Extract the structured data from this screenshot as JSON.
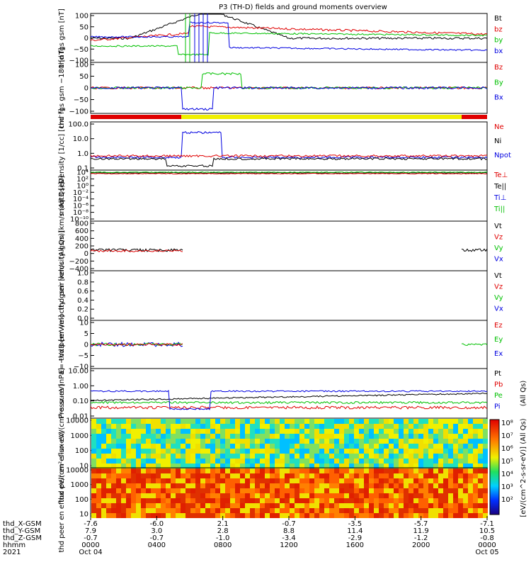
{
  "chart_data": {
    "type": "line",
    "title": "P3 (TH-D) fields and ground moments overview",
    "panels": [
      {
        "ylabel": "thd fgs gsm [nT]",
        "yticks": [
          "100",
          "50",
          "0",
          "−50",
          "−100"
        ],
        "legend": [
          {
            "name": "Bt",
            "color": "#000000"
          },
          {
            "name": "bz",
            "color": "#e00000"
          },
          {
            "name": "by",
            "color": "#00c000"
          },
          {
            "name": "bx",
            "color": "#0000e0"
          }
        ]
      },
      {
        "ylabel": "thd fgs gsm −180 [nT]",
        "yticks": [
          "100",
          "50",
          "0",
          "−50",
          "−100"
        ],
        "legend": [
          {
            "name": "Bz",
            "color": "#e00000"
          },
          {
            "name": "By",
            "color": "#00c000"
          },
          {
            "name": "Bx",
            "color": "#0000e0"
          }
        ]
      },
      {
        "ylabel": "Density [1/cc] [cm⁻³]",
        "yticks": [
          "100.0",
          "10.0",
          "1.0",
          "0.1"
        ],
        "legend": [
          {
            "name": "Ne",
            "color": "#e00000"
          },
          {
            "name": "Ni",
            "color": "#000000"
          },
          {
            "name": "Npot",
            "color": "#0000e0"
          }
        ]
      },
      {
        "ylabel": "moqt3 [eV]",
        "yticks": [
          "10⁴",
          "10²",
          "10⁰",
          "10⁻²",
          "10⁻⁴",
          "10⁻⁶",
          "10⁻⁸",
          "10⁻¹⁰"
        ],
        "legend": [
          {
            "name": "Te⊥",
            "color": "#e00000"
          },
          {
            "name": "Te||",
            "color": "#000000"
          },
          {
            "name": "Ti⊥",
            "color": "#0000e0"
          },
          {
            "name": "Ti||",
            "color": "#00c000"
          }
        ]
      },
      {
        "ylabel": "thd peir velocity gsm [km/s (All Qs)]",
        "yticks": [
          "800",
          "600",
          "400",
          "200",
          "0",
          "−200",
          "−400"
        ],
        "legend": [
          {
            "name": "Vt",
            "color": "#000000"
          },
          {
            "name": "Vz",
            "color": "#e00000"
          },
          {
            "name": "Vy",
            "color": "#00c000"
          },
          {
            "name": "Vx",
            "color": "#0000e0"
          }
        ]
      },
      {
        "ylabel": "thd peer velocity gsm [km/s (All Qs)]",
        "yticks": [
          "1.0",
          "0.8",
          "0.6",
          "0.4",
          "0.2",
          "0.0"
        ],
        "legend": [
          {
            "name": "Vt",
            "color": "#000000"
          },
          {
            "name": "Vz",
            "color": "#e00000"
          },
          {
            "name": "Vy",
            "color": "#00c000"
          },
          {
            "name": "Vx",
            "color": "#0000e0"
          }
        ]
      },
      {
        "ylabel": "E=−VxB [mV/m]",
        "yticks": [
          "10",
          "5",
          "0",
          "−5",
          "−10"
        ],
        "legend": [
          {
            "name": "Ez",
            "color": "#e00000"
          },
          {
            "name": "Ey",
            "color": "#00c000"
          },
          {
            "name": "Ex",
            "color": "#0000e0"
          }
        ]
      },
      {
        "ylabel": "Pressure [nPa]",
        "yticks": [
          "10.00",
          "1.00",
          "0.10",
          "0.01"
        ],
        "legend": [
          {
            "name": "Pt",
            "color": "#000000"
          },
          {
            "name": "Pb",
            "color": "#e00000"
          },
          {
            "name": "Pe",
            "color": "#00c000"
          },
          {
            "name": "Pi",
            "color": "#0000e0"
          }
        ],
        "side_label": "(All Qs)"
      },
      {
        "ylabel": "thd peir en eflux eV/(cm²‑s‑sr‑eV)",
        "yticks": [
          "10000",
          "1000",
          "100",
          "10"
        ],
        "type": "heatmap"
      },
      {
        "ylabel": "thd peer en eflux eV/(cm²‑s‑sr‑eV)",
        "yticks": [
          "10000",
          "1000",
          "100",
          "10"
        ],
        "type": "heatmap"
      }
    ],
    "colorbar": {
      "label": "[eV/(cm^2-s-sr-eV)] (All Qs)",
      "ticks": [
        "10⁸",
        "10⁷",
        "10⁶",
        "10⁵",
        "10⁴",
        "10³",
        "10²"
      ]
    },
    "x_axis": {
      "row_labels": [
        "thd_X-GSM",
        "thd_Y-GSM",
        "thd_Z-GSM",
        "hhmm",
        "2021"
      ],
      "ticks": [
        {
          "x": "-7.6",
          "y": "7.9",
          "z": "-0.7",
          "hhmm": "0000",
          "date": "Oct 04"
        },
        {
          "x": "-6.0",
          "y": "3.0",
          "z": "-0.7",
          "hhmm": "0400",
          "date": ""
        },
        {
          "x": "2.1",
          "y": "2.8",
          "z": "-1.0",
          "hhmm": "0800",
          "date": ""
        },
        {
          "x": "-0.7",
          "y": "8.8",
          "z": "-3.4",
          "hhmm": "1200",
          "date": ""
        },
        {
          "x": "-3.5",
          "y": "11.4",
          "z": "-2.9",
          "hhmm": "1600",
          "date": ""
        },
        {
          "x": "-5.7",
          "y": "11.9",
          "z": "-1.2",
          "hhmm": "2000",
          "date": ""
        },
        {
          "x": "-7.1",
          "y": "10.5",
          "z": "-0.8",
          "hhmm": "0000",
          "date": "Oct 05"
        }
      ]
    }
  }
}
